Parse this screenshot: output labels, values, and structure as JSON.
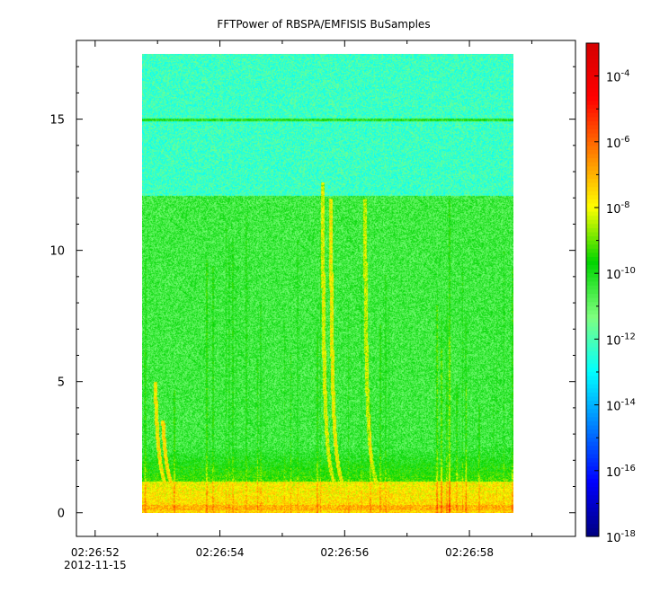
{
  "chart_data": {
    "type": "heatmap",
    "title": "FFTPower of RBSPA/EMFISIS  BuSamples",
    "xlabel": "",
    "ylabel": "",
    "x_tick_labels": [
      "02:26:52",
      "02:26:54",
      "02:26:56",
      "02:26:58"
    ],
    "x_date_label": "2012-11-15",
    "x_range_seconds": [
      51.7,
      59.7
    ],
    "y_range": [
      -0.9,
      18.0
    ],
    "y_ticks": [
      0,
      5,
      10,
      15
    ],
    "data_extent": {
      "x_seconds": [
        52.75,
        58.7
      ],
      "y": [
        0,
        17.5
      ]
    },
    "colorbar": {
      "scale": "log",
      "range": [
        1e-18,
        0.001
      ],
      "tick_exponents": [
        -18,
        -16,
        -14,
        -12,
        -10,
        -8,
        -6,
        -4
      ],
      "tick_labels": [
        "10",
        "10",
        "10",
        "10",
        "10",
        "10",
        "10",
        "10"
      ],
      "tick_superscripts": [
        "-18",
        "-16",
        "-14",
        "-12",
        "-10",
        "-8",
        "-6",
        "-4"
      ]
    },
    "features": {
      "background_power_exponent_below_12": -10.5,
      "background_power_exponent_above_12": -12.2,
      "band_edge_y": 12.1,
      "line_y": 15.0,
      "line_power_exponent": -10.0,
      "low_freq_band_power_exponent": -8.0,
      "bottom_line_y": 0.2,
      "bottom_line_power_exponent": -7.0,
      "dispersed_bursts": [
        {
          "t_center_seconds": 55.82,
          "top_y": 12.6,
          "power_exponent": -8.2
        },
        {
          "t_center_seconds": 55.95,
          "top_y": 12.0,
          "power_exponent": -8.0
        },
        {
          "t_center_seconds": 56.5,
          "top_y": 12.0,
          "power_exponent": -8.4
        },
        {
          "t_center_seconds": 53.1,
          "top_y": 5.0,
          "power_exponent": -7.8
        },
        {
          "t_center_seconds": 53.2,
          "top_y": 3.5,
          "power_exponent": -7.6
        }
      ]
    },
    "colors": {
      "colormap": [
        "#00007f",
        "#0000ff",
        "#007fff",
        "#00ffff",
        "#7fff7f",
        "#00d400",
        "#ffff00",
        "#ff7f00",
        "#ff0000",
        "#d40000"
      ]
    }
  }
}
